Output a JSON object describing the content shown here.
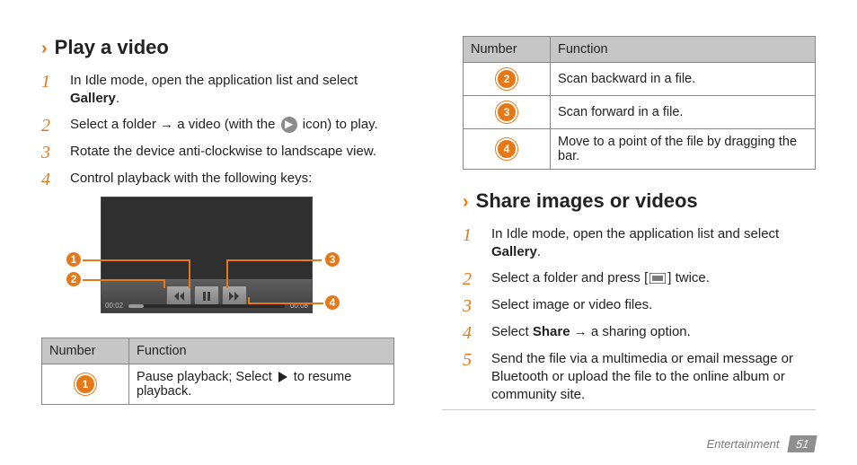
{
  "colors": {
    "accent": "#e77817",
    "header_bg": "#c6c6c6",
    "border": "#888888",
    "footer_text": "#777777",
    "footer_page_bg": "#8f8f8f",
    "player_bg": "#2f2f2f"
  },
  "left": {
    "heading": "Play a video",
    "steps": [
      {
        "n": "1",
        "html": "In Idle mode, open the application list and select <b>Gallery</b>."
      },
      {
        "n": "2",
        "html": "Select a folder → a video (with the <span class='circ-icon' data-name='play-badge-icon' data-interactable='false'>▶</span> icon) to play."
      },
      {
        "n": "3",
        "html": "Rotate the device anti-clockwise to landscape view."
      },
      {
        "n": "4",
        "html": "Control playback with the following keys:"
      }
    ],
    "player": {
      "time_left": "00:02",
      "time_right": "00:08",
      "callouts": [
        "1",
        "2",
        "3",
        "4"
      ]
    },
    "table": {
      "headers": [
        "Number",
        "Function"
      ],
      "rows": [
        {
          "n": "1",
          "html": "Pause playback; Select <span class='tri-right' data-name='play-icon' data-interactable='false'></span> to resume playback."
        }
      ]
    }
  },
  "right": {
    "table": {
      "headers": [
        "Number",
        "Function"
      ],
      "rows": [
        {
          "n": "2",
          "text": "Scan backward in a file."
        },
        {
          "n": "3",
          "text": "Scan forward in a file."
        },
        {
          "n": "4",
          "text": "Move to a point of the file by dragging the bar."
        }
      ]
    },
    "heading": "Share images or videos",
    "steps": [
      {
        "n": "1",
        "html": "In Idle mode, open the application list and select <b>Gallery</b>."
      },
      {
        "n": "2",
        "html": "Select a folder and press [<svg class='menu-icon' viewBox='0 0 18 12' data-name='menu-icon' data-interactable='false'><rect x='0' y='0' width='18' height='12' fill='none' stroke='#222' stroke-width='1.2'/><line x1='3' y1='4' x2='15' y2='4' stroke='#222' stroke-width='1.2'/><line x1='3' y1='6' x2='15' y2='6' stroke='#222' stroke-width='1.2'/><line x1='3' y1='8' x2='15' y2='8' stroke='#222' stroke-width='1.2'/></svg>] twice."
      },
      {
        "n": "3",
        "html": "Select image or video files."
      },
      {
        "n": "4",
        "html": "Select <b>Share</b> → a sharing option."
      },
      {
        "n": "5",
        "html": "Send the file via a multimedia or email message or Bluetooth or upload the file to the online album or community site."
      }
    ]
  },
  "footer": {
    "section": "Entertainment",
    "page": "51"
  }
}
